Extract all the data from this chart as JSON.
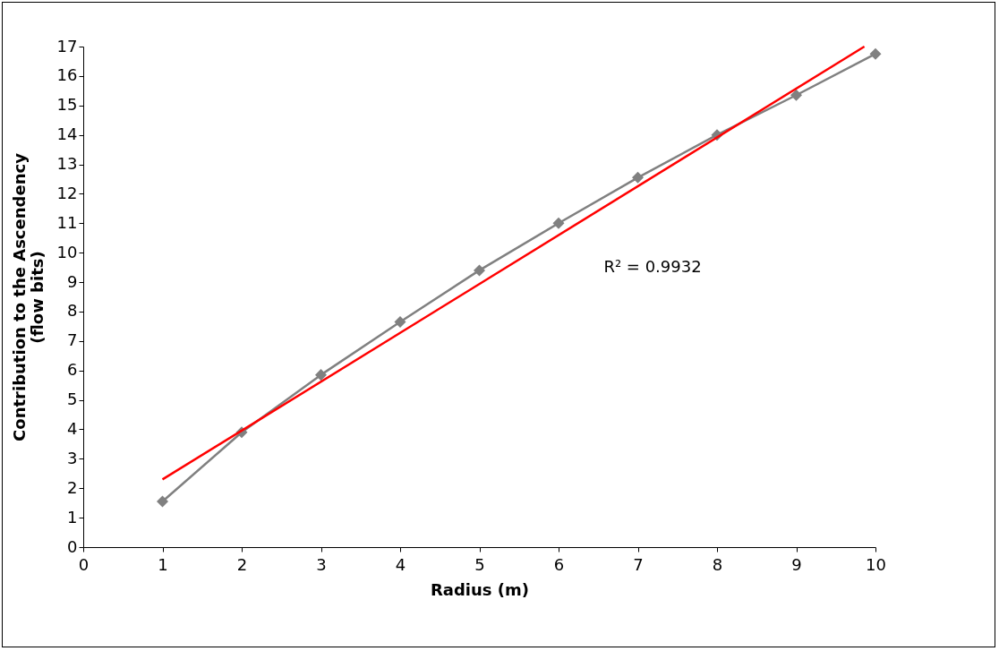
{
  "chart_data": {
    "type": "line",
    "xlabel": "Radius (m)",
    "ylabel": "Contribution to the Ascendency\n(flow bits)",
    "xlim": [
      0,
      10
    ],
    "xticks": [
      0,
      1,
      2,
      3,
      4,
      5,
      6,
      7,
      8,
      9,
      10
    ],
    "ylim": [
      0,
      17
    ],
    "yticks": [
      0,
      1,
      2,
      3,
      4,
      5,
      6,
      7,
      8,
      9,
      10,
      11,
      12,
      13,
      14,
      15,
      16,
      17
    ],
    "x": [
      1,
      2,
      3,
      4,
      5,
      6,
      7,
      8,
      9,
      10
    ],
    "series": [
      {
        "color": "#808080",
        "values": [
          1.55,
          3.9,
          5.85,
          7.65,
          9.4,
          11.0,
          12.55,
          14.0,
          15.35,
          16.75
        ]
      },
      {
        "type": "line",
        "color": "#ff0000",
        "marker": "none",
        "x": [
          1,
          9.86
        ],
        "values": [
          2.3,
          17
        ]
      }
    ],
    "annotations": [
      "R² = 0.9932"
    ],
    "grid": false,
    "marker": "diamond",
    "line_style": "solid"
  }
}
